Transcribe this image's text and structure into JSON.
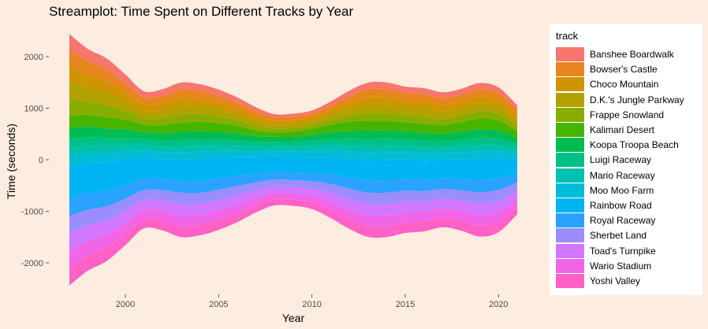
{
  "chart_data": {
    "type": "area",
    "subtype": "streamgraph",
    "title": "Streamplot: Time Spent on Different Tracks by Year",
    "xlabel": "Year",
    "ylabel": "Time (seconds)",
    "xlim": [
      1997,
      2021
    ],
    "ylim": [
      -2400,
      2400
    ],
    "x_ticks": [
      2000,
      2005,
      2010,
      2015,
      2020
    ],
    "y_ticks": [
      2000,
      1000,
      0,
      -1000,
      -2000
    ],
    "grid": false,
    "legend_title": "track",
    "legend_position": "right",
    "years": [
      1997,
      1998,
      1999,
      2000,
      2001,
      2002,
      2003,
      2004,
      2005,
      2006,
      2007,
      2008,
      2009,
      2010,
      2011,
      2012,
      2013,
      2014,
      2015,
      2016,
      2017,
      2018,
      2019,
      2020,
      2021
    ],
    "series": [
      {
        "name": "Banshee Boardwalk",
        "color": "#F8766D",
        "values": [
          300,
          240,
          220,
          170,
          120,
          130,
          140,
          130,
          120,
          100,
          80,
          60,
          60,
          60,
          80,
          110,
          130,
          130,
          120,
          120,
          110,
          110,
          120,
          110,
          90
        ]
      },
      {
        "name": "Bowser's Castle",
        "color": "#E7851E",
        "values": [
          320,
          260,
          230,
          180,
          130,
          140,
          160,
          150,
          130,
          110,
          90,
          70,
          70,
          70,
          90,
          120,
          150,
          150,
          140,
          140,
          130,
          130,
          140,
          130,
          100
        ]
      },
      {
        "name": "Choco Mountain",
        "color": "#D09400",
        "values": [
          310,
          250,
          220,
          170,
          130,
          140,
          150,
          140,
          130,
          110,
          90,
          70,
          70,
          70,
          90,
          120,
          150,
          150,
          140,
          140,
          130,
          130,
          140,
          130,
          100
        ]
      },
      {
        "name": "D.K.'s Jungle Parkway",
        "color": "#B2A100",
        "values": [
          330,
          270,
          240,
          180,
          140,
          150,
          170,
          160,
          140,
          120,
          100,
          80,
          80,
          80,
          100,
          130,
          160,
          160,
          150,
          150,
          140,
          140,
          150,
          140,
          110
        ]
      },
      {
        "name": "Frappe Snowland",
        "color": "#89AC00",
        "values": [
          320,
          260,
          230,
          180,
          130,
          140,
          160,
          150,
          130,
          110,
          90,
          70,
          70,
          70,
          90,
          120,
          150,
          150,
          140,
          140,
          130,
          130,
          140,
          130,
          100
        ]
      },
      {
        "name": "Kalimari Desert",
        "color": "#45B500",
        "values": [
          240,
          230,
          220,
          190,
          140,
          160,
          180,
          180,
          170,
          150,
          110,
          90,
          100,
          120,
          150,
          180,
          190,
          190,
          180,
          180,
          170,
          190,
          210,
          200,
          130
        ]
      },
      {
        "name": "Koopa Troopa Beach",
        "color": "#00BC51",
        "values": [
          220,
          200,
          180,
          160,
          130,
          140,
          150,
          150,
          140,
          130,
          110,
          100,
          100,
          110,
          130,
          150,
          160,
          160,
          150,
          150,
          140,
          150,
          160,
          150,
          110
        ]
      },
      {
        "name": "Luigi Raceway",
        "color": "#00C087",
        "values": [
          180,
          170,
          160,
          140,
          120,
          120,
          130,
          130,
          120,
          110,
          100,
          90,
          90,
          100,
          110,
          130,
          140,
          140,
          130,
          130,
          120,
          130,
          140,
          130,
          100
        ]
      },
      {
        "name": "Mario Raceway",
        "color": "#00C0B2",
        "values": [
          170,
          160,
          150,
          130,
          110,
          110,
          120,
          120,
          110,
          100,
          90,
          80,
          90,
          100,
          110,
          120,
          130,
          130,
          120,
          120,
          110,
          120,
          130,
          120,
          90
        ]
      },
      {
        "name": "Moo Moo Farm",
        "color": "#00BCD6",
        "values": [
          180,
          170,
          160,
          150,
          130,
          130,
          140,
          140,
          130,
          120,
          110,
          110,
          120,
          130,
          140,
          150,
          150,
          150,
          140,
          140,
          130,
          140,
          150,
          140,
          110
        ]
      },
      {
        "name": "Rainbow Road",
        "color": "#00B3F2",
        "values": [
          600,
          580,
          560,
          500,
          420,
          380,
          400,
          420,
          400,
          360,
          320,
          300,
          290,
          300,
          320,
          350,
          380,
          390,
          380,
          370,
          360,
          380,
          400,
          380,
          280
        ]
      },
      {
        "name": "Royal Raceway",
        "color": "#29A3FF",
        "values": [
          360,
          330,
          300,
          260,
          220,
          220,
          240,
          240,
          220,
          200,
          170,
          150,
          150,
          160,
          190,
          220,
          240,
          240,
          230,
          220,
          210,
          220,
          240,
          230,
          170
        ]
      },
      {
        "name": "Sherbet Land",
        "color": "#9C8DFF",
        "values": [
          340,
          300,
          270,
          230,
          190,
          200,
          220,
          210,
          200,
          180,
          150,
          130,
          130,
          140,
          170,
          200,
          220,
          220,
          210,
          200,
          190,
          200,
          220,
          210,
          160
        ]
      },
      {
        "name": "Toad's Turnpike",
        "color": "#D277FF",
        "values": [
          350,
          300,
          270,
          230,
          190,
          200,
          220,
          210,
          200,
          180,
          150,
          130,
          130,
          140,
          170,
          200,
          220,
          220,
          210,
          200,
          190,
          200,
          220,
          210,
          160
        ]
      },
      {
        "name": "Wario Stadium",
        "color": "#F166E8",
        "values": [
          330,
          290,
          260,
          220,
          180,
          190,
          210,
          200,
          190,
          170,
          140,
          120,
          120,
          130,
          160,
          190,
          210,
          210,
          200,
          190,
          180,
          190,
          210,
          200,
          150
        ]
      },
      {
        "name": "Yoshi Valley",
        "color": "#FF61C7",
        "values": [
          330,
          290,
          260,
          220,
          180,
          190,
          210,
          200,
          190,
          170,
          140,
          120,
          120,
          130,
          160,
          190,
          210,
          210,
          200,
          190,
          180,
          190,
          210,
          200,
          150
        ]
      }
    ],
    "last_series_note": "Yoshi Valley color"
  }
}
